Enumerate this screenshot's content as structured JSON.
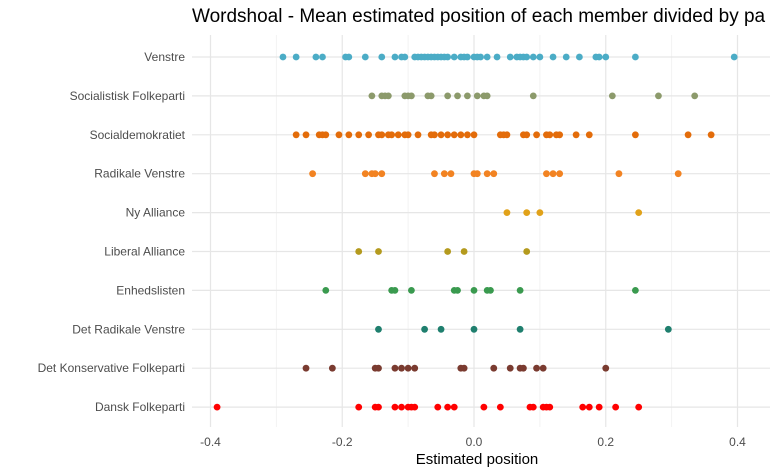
{
  "chart_data": {
    "type": "scatter",
    "title": "Wordshoal - Mean estimated position of each member divided by pa",
    "xlabel": "Estimated position",
    "ylabel": "",
    "xlim": [
      -0.42,
      0.44
    ],
    "x_ticks": [
      {
        "value": -0.4,
        "label": "-0.4"
      },
      {
        "value": -0.2,
        "label": "-0.2"
      },
      {
        "value": 0.0,
        "label": "0.0"
      },
      {
        "value": 0.2,
        "label": "0.2"
      },
      {
        "value": 0.4,
        "label": "0.4"
      }
    ],
    "grid": true,
    "legend": "none",
    "series": [
      {
        "name": "Venstre",
        "color": "#4bacc6",
        "values": [
          -0.29,
          -0.27,
          -0.24,
          -0.23,
          -0.195,
          -0.19,
          -0.165,
          -0.14,
          -0.12,
          -0.11,
          -0.105,
          -0.09,
          -0.085,
          -0.08,
          -0.075,
          -0.07,
          -0.065,
          -0.06,
          -0.055,
          -0.05,
          -0.045,
          -0.04,
          -0.03,
          -0.02,
          -0.015,
          -0.01,
          0.0,
          0.005,
          0.01,
          0.02,
          0.035,
          0.055,
          0.065,
          0.07,
          0.075,
          0.08,
          0.09,
          0.1,
          0.12,
          0.14,
          0.16,
          0.185,
          0.19,
          0.2,
          0.245,
          0.395
        ]
      },
      {
        "name": "Socialistisk Folkeparti",
        "color": "#8c9a6b",
        "values": [
          -0.155,
          -0.14,
          -0.135,
          -0.13,
          -0.105,
          -0.1,
          -0.095,
          -0.07,
          -0.065,
          -0.04,
          -0.025,
          -0.01,
          0.005,
          0.015,
          0.02,
          0.09,
          0.21,
          0.28,
          0.335
        ]
      },
      {
        "name": "Socialdemokratiet",
        "color": "#e36c0a",
        "values": [
          -0.27,
          -0.255,
          -0.235,
          -0.23,
          -0.225,
          -0.205,
          -0.19,
          -0.175,
          -0.16,
          -0.145,
          -0.14,
          -0.13,
          -0.125,
          -0.115,
          -0.105,
          -0.1,
          -0.085,
          -0.065,
          -0.06,
          -0.05,
          -0.04,
          -0.03,
          -0.02,
          -0.01,
          0.0,
          0.04,
          0.045,
          0.05,
          0.075,
          0.08,
          0.095,
          0.11,
          0.115,
          0.125,
          0.13,
          0.155,
          0.175,
          0.245,
          0.325,
          0.36
        ]
      },
      {
        "name": "Radikale Venstre",
        "color": "#f28322",
        "values": [
          -0.245,
          -0.165,
          -0.155,
          -0.15,
          -0.14,
          -0.06,
          -0.045,
          -0.035,
          0.0,
          0.005,
          0.02,
          0.03,
          0.11,
          0.12,
          0.13,
          0.22,
          0.31
        ]
      },
      {
        "name": "Ny Alliance",
        "color": "#e1a21a",
        "values": [
          0.05,
          0.08,
          0.1,
          0.25
        ]
      },
      {
        "name": "Liberal Alliance",
        "color": "#b49a1e",
        "values": [
          -0.175,
          -0.145,
          -0.04,
          -0.015,
          0.08
        ]
      },
      {
        "name": "Enhedslisten",
        "color": "#3a9a4f",
        "values": [
          -0.225,
          -0.125,
          -0.12,
          -0.095,
          -0.03,
          -0.025,
          0.0,
          0.02,
          0.025,
          0.07,
          0.245
        ]
      },
      {
        "name": "Det Radikale Venstre",
        "color": "#1f7f6e",
        "values": [
          -0.145,
          -0.075,
          -0.05,
          0.0,
          0.07,
          0.295
        ]
      },
      {
        "name": "Det Konservative Folkeparti",
        "color": "#7a3b30",
        "values": [
          -0.255,
          -0.215,
          -0.15,
          -0.145,
          -0.12,
          -0.11,
          -0.1,
          -0.09,
          -0.02,
          -0.015,
          0.03,
          0.055,
          0.07,
          0.075,
          0.095,
          0.105,
          0.2
        ]
      },
      {
        "name": "Dansk Folkeparti",
        "color": "#ff0000",
        "values": [
          -0.39,
          -0.175,
          -0.15,
          -0.145,
          -0.12,
          -0.11,
          -0.1,
          -0.095,
          -0.09,
          -0.055,
          -0.04,
          -0.03,
          0.015,
          0.04,
          0.085,
          0.09,
          0.105,
          0.11,
          0.115,
          0.165,
          0.175,
          0.19,
          0.215,
          0.25
        ]
      }
    ]
  }
}
